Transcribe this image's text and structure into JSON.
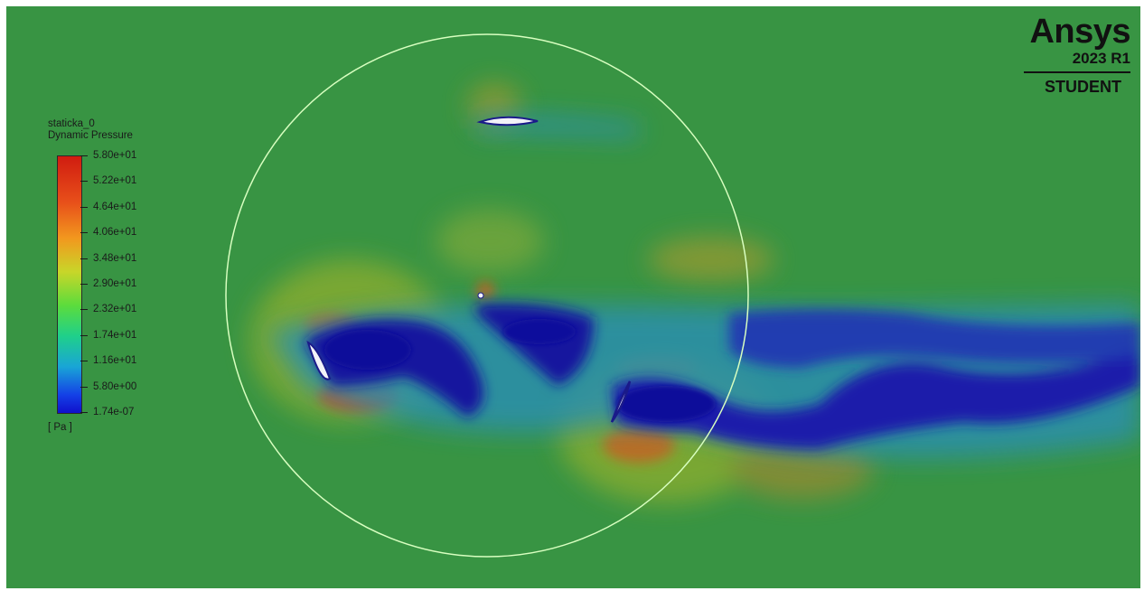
{
  "colors": {
    "background_field": "#389443",
    "low_pressure": "#1616a8",
    "high_pressure": "#d05a20",
    "domain_circle": "#d8ffc0"
  },
  "legend": {
    "title_line1": "staticka_0",
    "title_line2": "Dynamic Pressure",
    "ticks": [
      "5.80e+01",
      "5.22e+01",
      "4.64e+01",
      "4.06e+01",
      "3.48e+01",
      "2.90e+01",
      "2.32e+01",
      "1.74e+01",
      "1.16e+01",
      "5.80e+00",
      "1.74e-07"
    ],
    "units": "[ Pa ]"
  },
  "brand": {
    "name": "Ansys",
    "version": "2023 R1",
    "edition": "STUDENT"
  }
}
